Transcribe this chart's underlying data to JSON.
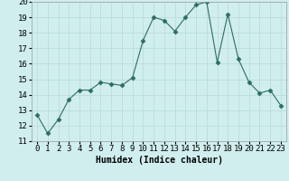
{
  "x": [
    0,
    1,
    2,
    3,
    4,
    5,
    6,
    7,
    8,
    9,
    10,
    11,
    12,
    13,
    14,
    15,
    16,
    17,
    18,
    19,
    20,
    21,
    22,
    23
  ],
  "y": [
    12.7,
    11.5,
    12.4,
    13.7,
    14.3,
    14.3,
    14.8,
    14.7,
    14.6,
    15.1,
    17.5,
    19.0,
    18.8,
    18.1,
    19.0,
    19.8,
    20.0,
    16.1,
    19.2,
    16.3,
    14.8,
    14.1,
    14.3,
    13.3
  ],
  "xlabel": "Humidex (Indice chaleur)",
  "ylim": [
    11,
    20
  ],
  "xlim_min": -0.5,
  "xlim_max": 23.5,
  "yticks": [
    11,
    12,
    13,
    14,
    15,
    16,
    17,
    18,
    19,
    20
  ],
  "xticks": [
    0,
    1,
    2,
    3,
    4,
    5,
    6,
    7,
    8,
    9,
    10,
    11,
    12,
    13,
    14,
    15,
    16,
    17,
    18,
    19,
    20,
    21,
    22,
    23
  ],
  "line_color": "#2d6e5e",
  "marker": "D",
  "marker_size": 2.5,
  "bg_color": "#d0eeee",
  "grid_color": "#b8d8d8",
  "label_fontsize": 7,
  "tick_fontsize": 6.5
}
